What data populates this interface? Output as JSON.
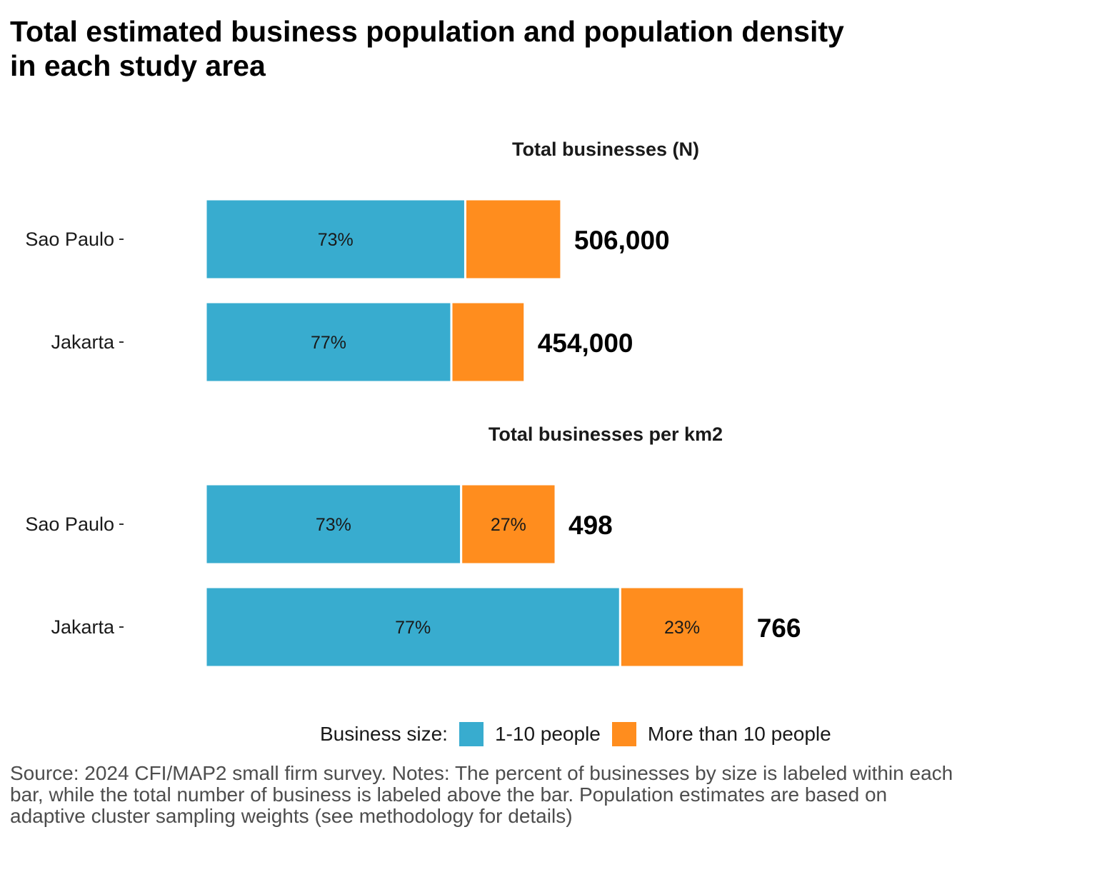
{
  "title_lines": [
    "Total estimated business population and population density",
    "in each study area"
  ],
  "colors": {
    "small": "#38ACCF",
    "large": "#FF8D1E"
  },
  "legend": {
    "title": "Business size:",
    "items": [
      "1-10 people",
      "More than 10 people"
    ]
  },
  "caption": "Source: 2024 CFI/MAP2 small firm survey. Notes: The percent of businesses by size is labeled within each bar, while the total number of business is labeled above the bar. Population estimates are based on adaptive cluster sampling weights (see methodology for details)",
  "chart_data": [
    {
      "type": "bar",
      "orientation": "horizontal",
      "stacked": true,
      "title": "Total businesses (N)",
      "categories": [
        "Sao Paulo",
        "Jakarta"
      ],
      "series": [
        {
          "name": "1-10 people",
          "values": [
            369380,
            349580
          ],
          "labels": [
            "73%",
            "77%"
          ]
        },
        {
          "name": "More than 10 people",
          "values": [
            136620,
            104420
          ],
          "labels": [
            "",
            ""
          ]
        }
      ],
      "totals": [
        506000,
        454000
      ],
      "total_labels": [
        "506,000",
        "454,000"
      ],
      "xlim": [
        0,
        1000000
      ]
    },
    {
      "type": "bar",
      "orientation": "horizontal",
      "stacked": true,
      "title": "Total businesses per km2",
      "categories": [
        "Sao Paulo",
        "Jakarta"
      ],
      "series": [
        {
          "name": "1-10 people",
          "values": [
            363.5,
            589.8
          ],
          "labels": [
            "73%",
            "77%"
          ]
        },
        {
          "name": "More than 10 people",
          "values": [
            134.5,
            176.2
          ],
          "labels": [
            "27%",
            "23%"
          ]
        }
      ],
      "totals": [
        498,
        766
      ],
      "total_labels": [
        "498",
        "766"
      ],
      "xlim": [
        0,
        1000
      ]
    }
  ]
}
